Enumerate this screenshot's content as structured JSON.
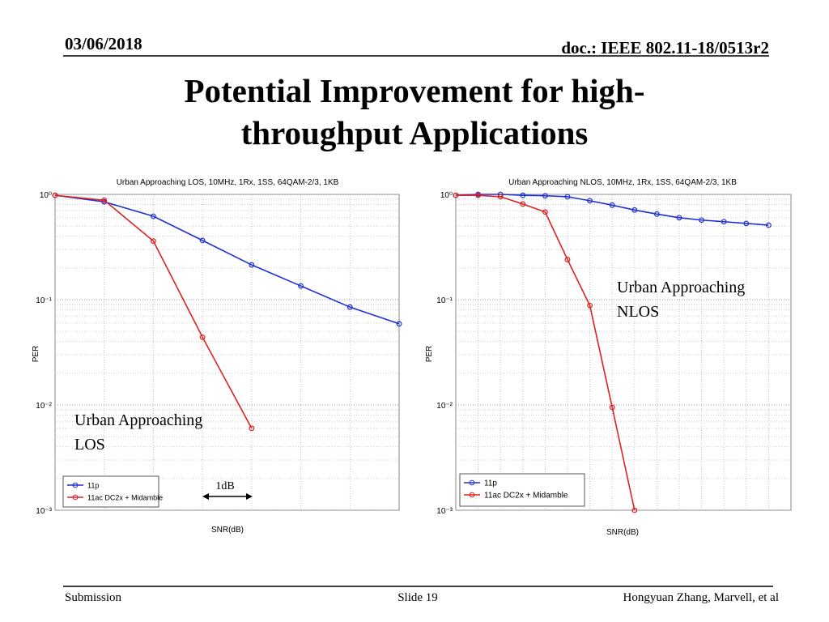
{
  "header": {
    "date": "03/06/2018",
    "doc": "doc.: IEEE 802.11-18/0513r2"
  },
  "title": [
    "Potential Improvement for high-",
    "throughput Applications"
  ],
  "footer": {
    "left": "Submission",
    "center": "Slide 19",
    "right": "Hongyuan Zhang, Marvell, et al"
  },
  "chart_data": [
    {
      "type": "line",
      "title": "Urban Approaching LOS, 10MHz, 1Rx, 1SS, 64QAM-2/3, 1KB",
      "xlabel": "SNR(dB)",
      "ylabel": "PER",
      "log_y": true,
      "grid": true,
      "legend": "lower left",
      "categories": [
        null,
        null,
        null,
        null,
        null,
        null,
        null,
        null
      ],
      "series": [
        {
          "name": "11p",
          "color": "#1f2fd6",
          "values": [
            0.98,
            0.85,
            0.62,
            0.365,
            0.214,
            0.135,
            0.085,
            0.059
          ]
        },
        {
          "name": "11ac DC2x + Midamble",
          "color": "#e02020",
          "values": [
            0.98,
            0.88,
            0.36,
            0.044,
            0.006,
            null,
            null,
            null
          ]
        }
      ],
      "ylim": [
        0.001,
        1
      ],
      "yticks": [
        {
          "value": 0.001,
          "label": "10⁻³"
        },
        {
          "value": 0.01,
          "label": "10⁻²"
        },
        {
          "value": 0.1,
          "label": "10⁻¹"
        },
        {
          "value": 1,
          "label": "10⁰"
        }
      ],
      "annotations": [
        [
          "Urban Approaching",
          "LOS"
        ],
        [
          "1dB"
        ]
      ]
    },
    {
      "type": "line",
      "title": "Urban Approaching NLOS, 10MHz, 1Rx, 1SS, 64QAM-2/3, 1KB",
      "xlabel": "SNR(dB)",
      "ylabel": "PER",
      "log_y": true,
      "grid": true,
      "legend": "lower left",
      "categories": [
        null,
        null,
        null,
        null,
        null,
        null,
        null,
        null,
        null,
        null,
        null,
        null,
        null,
        null,
        null,
        null
      ],
      "series": [
        {
          "name": "11p",
          "color": "#1f2fd6",
          "values": [
            0.98,
            1.0,
            1.0,
            0.98,
            0.97,
            0.95,
            0.87,
            0.79,
            0.71,
            0.65,
            0.6,
            0.57,
            0.55,
            0.53,
            0.51,
            null
          ]
        },
        {
          "name": "11ac DC2x + Midamble",
          "color": "#e02020",
          "values": [
            0.98,
            0.98,
            0.95,
            0.81,
            0.68,
            0.24,
            0.088,
            0.0095,
            0.001,
            null,
            null,
            null,
            null,
            null,
            null,
            null
          ]
        }
      ],
      "ylim": [
        0.001,
        1
      ],
      "yticks": [
        {
          "value": 0.001,
          "label": "10⁻³"
        },
        {
          "value": 0.01,
          "label": "10⁻²"
        },
        {
          "value": 0.1,
          "label": "10⁻¹"
        },
        {
          "value": 1,
          "label": "10⁰"
        }
      ],
      "annotations": [
        [
          "Urban Approaching",
          "NLOS"
        ]
      ]
    }
  ]
}
